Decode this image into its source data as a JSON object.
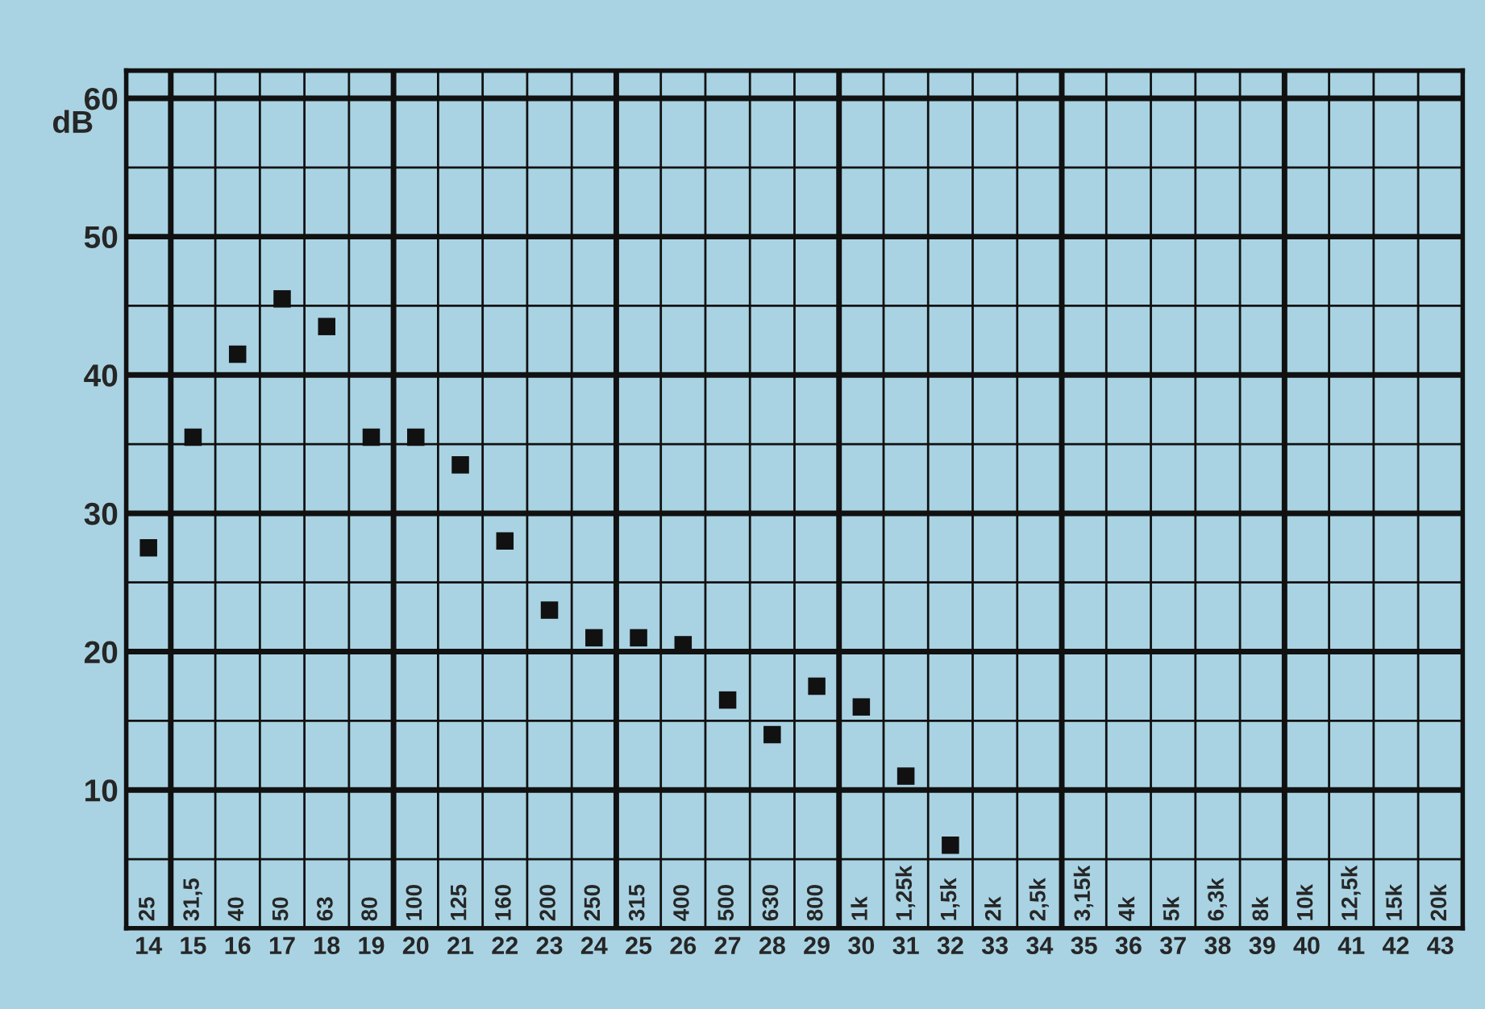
{
  "chart_data": {
    "type": "scatter",
    "ylabel": "dB",
    "categories": [
      "14",
      "15",
      "16",
      "17",
      "18",
      "19",
      "20",
      "21",
      "22",
      "23",
      "24",
      "25",
      "26",
      "27",
      "28",
      "29",
      "30",
      "31",
      "32",
      "33",
      "34",
      "35",
      "36",
      "37",
      "38",
      "39",
      "40",
      "41",
      "42",
      "43"
    ],
    "values": [
      27.5,
      35.5,
      41.5,
      45.5,
      43.5,
      35.5,
      35.5,
      33.5,
      28,
      23,
      21,
      21,
      20.5,
      16.5,
      14,
      17.5,
      16,
      11,
      6,
      null,
      null,
      null,
      null,
      null,
      null,
      null,
      null,
      null,
      null,
      null
    ],
    "color": "#111111",
    "marker": "square",
    "annotations": [
      "25",
      "31,5",
      "40",
      "50",
      "63",
      "80",
      "100",
      "125",
      "160",
      "200",
      "250",
      "315",
      "400",
      "500",
      "630",
      "800",
      "1k",
      "1,25k",
      "1,5k",
      "2k",
      "2,5k",
      "3,15k",
      "4k",
      "5k",
      "6,3k",
      "8k",
      "10k",
      "12,5k",
      "15k",
      "20k"
    ],
    "ylim": [
      0,
      62
    ],
    "yticks": [
      10,
      20,
      30,
      40,
      50,
      60
    ],
    "grid": true
  }
}
